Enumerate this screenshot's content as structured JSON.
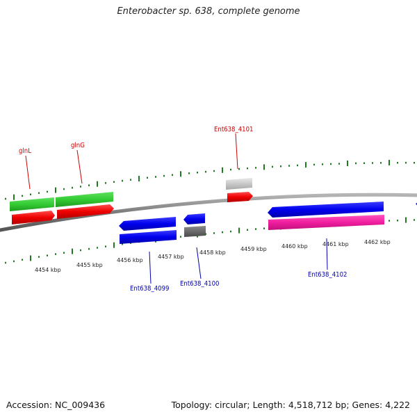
{
  "header": {
    "title": "Enterobacter sp. 638, complete genome"
  },
  "footer": {
    "accession": "Accession: NC_009436",
    "summary": "Topology: circular; Length: 4,518,712 bp; Genes: 4,222"
  },
  "colors": {
    "backbone": "#808080",
    "tick": "#1f7a1f",
    "red_label": "#cc0000",
    "blue_label": "#0000aa"
  },
  "scale": {
    "unit": "kbp",
    "labels": [
      "4454 kbp",
      "4455 kbp",
      "4456 kbp",
      "4457 kbp",
      "4458 kbp",
      "4459 kbp",
      "4460 kbp",
      "4461 kbp",
      "4462 kbp"
    ]
  },
  "labels": {
    "glnL": "glnL",
    "glnG": "glnG",
    "ent4101": "Ent638_4101",
    "ent4099": "Ent638_4099",
    "ent4100": "Ent638_4100",
    "ent4102": "Ent638_4102"
  }
}
